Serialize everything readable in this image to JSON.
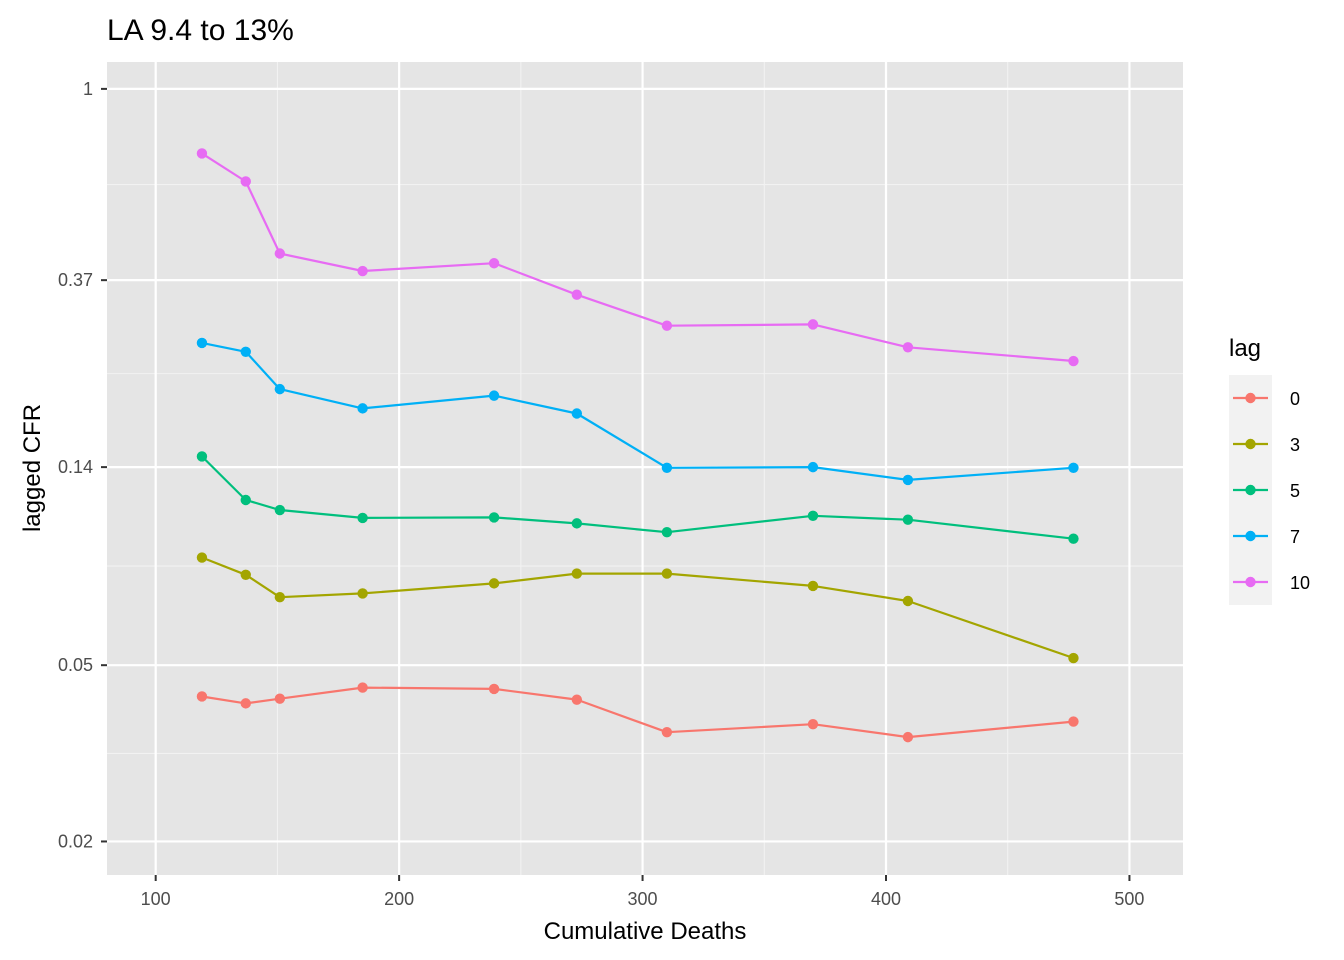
{
  "chart_data": {
    "type": "line",
    "title": "LA 9.4 to 13%",
    "xlabel": "Cumulative Deaths",
    "ylabel": "lagged CFR",
    "xlim": [
      80,
      522
    ],
    "ylim": [
      0.0168,
      1.15
    ],
    "y_scale": "log",
    "x_ticks": [
      100,
      200,
      300,
      400,
      500
    ],
    "x_tick_labels": [
      "100",
      "200",
      "300",
      "400",
      "500"
    ],
    "y_ticks": [
      0.02,
      0.05,
      0.14,
      0.37,
      1
    ],
    "y_tick_labels": [
      "0.02",
      "0.05",
      "0.14",
      "0.37",
      "1"
    ],
    "x_minor_ticks": [
      150,
      250,
      350,
      450
    ],
    "y_minor_ticks": [
      0.0316,
      0.0837,
      0.2276,
      0.6083
    ],
    "grid": true,
    "panel_background": "#e5e5e5",
    "legend_title": "lag",
    "legend_position": "right",
    "x": [
      119,
      137,
      151,
      185,
      239,
      273,
      310,
      370,
      409,
      477
    ],
    "series": [
      {
        "name": "0",
        "color": "#f8766d",
        "values": [
          0.0425,
          0.041,
          0.042,
          0.0445,
          0.0442,
          0.0418,
          0.0353,
          0.0368,
          0.0344,
          0.0373
        ]
      },
      {
        "name": "3",
        "color": "#a3a500",
        "values": [
          0.0875,
          0.08,
          0.0712,
          0.0726,
          0.0765,
          0.0805,
          0.0805,
          0.0755,
          0.0698,
          0.0519
        ]
      },
      {
        "name": "5",
        "color": "#00bf7d",
        "values": [
          0.148,
          0.118,
          0.112,
          0.1075,
          0.1078,
          0.1045,
          0.0998,
          0.1087,
          0.1065,
          0.0965
        ]
      },
      {
        "name": "7",
        "color": "#00b0f6",
        "values": [
          0.267,
          0.255,
          0.21,
          0.19,
          0.203,
          0.185,
          0.1395,
          0.14,
          0.131,
          0.1395
        ]
      },
      {
        "name": "10",
        "color": "#e76bf3",
        "values": [
          0.715,
          0.618,
          0.425,
          0.388,
          0.404,
          0.343,
          0.292,
          0.294,
          0.261,
          0.243
        ]
      }
    ]
  }
}
